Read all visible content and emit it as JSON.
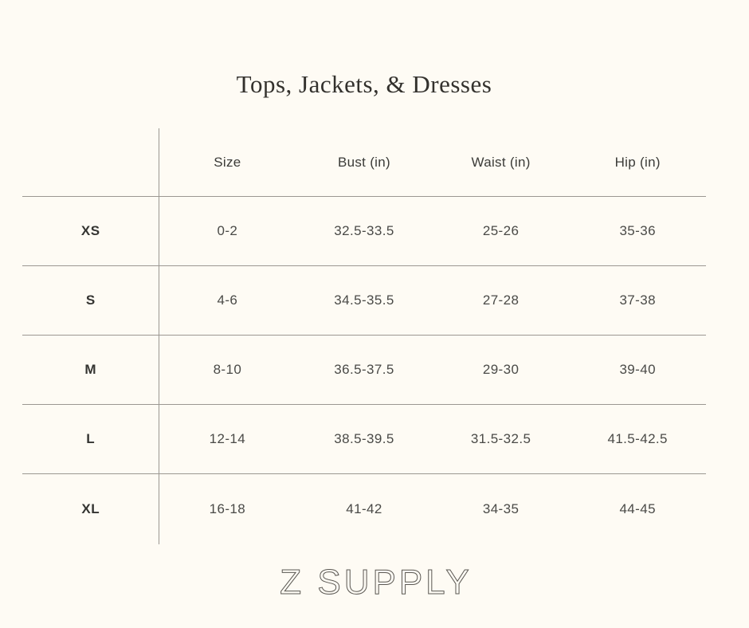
{
  "page": {
    "brand": "Z SUPPLY"
  },
  "chart_data": {
    "type": "table",
    "title": "Tops, Jackets, & Dresses",
    "columns": [
      "Size",
      "Bust (in)",
      "Waist (in)",
      "Hip (in)"
    ],
    "rows": [
      {
        "label": "XS",
        "size": "0-2",
        "bust": "32.5-33.5",
        "waist": "25-26",
        "hip": "35-36"
      },
      {
        "label": "S",
        "size": "4-6",
        "bust": "34.5-35.5",
        "waist": "27-28",
        "hip": "37-38"
      },
      {
        "label": "M",
        "size": "8-10",
        "bust": "36.5-37.5",
        "waist": "29-30",
        "hip": "39-40"
      },
      {
        "label": "L",
        "size": "12-14",
        "bust": "38.5-39.5",
        "waist": "31.5-32.5",
        "hip": "41.5-42.5"
      },
      {
        "label": "XL",
        "size": "16-18",
        "bust": "41-42",
        "waist": "34-35",
        "hip": "44-45"
      }
    ]
  },
  "colors": {
    "background": "#FEFBF4",
    "line": "#9B9791",
    "title_text": "#33312D",
    "header_text": "#3B3B38",
    "cell_text": "#4A4A47",
    "label_text": "#343431",
    "brand_text": "#5B5853"
  }
}
